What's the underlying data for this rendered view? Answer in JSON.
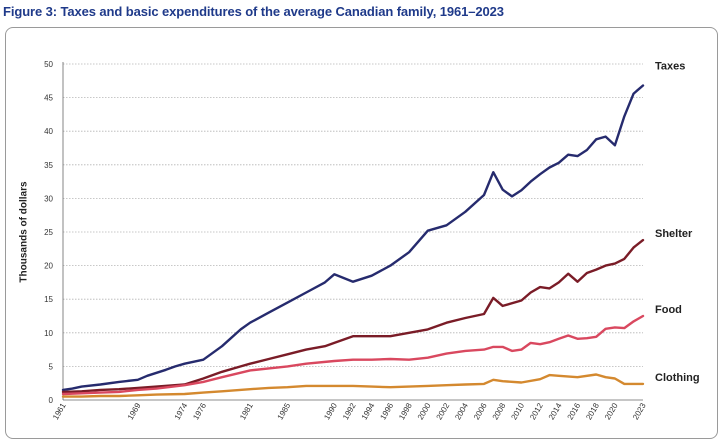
{
  "figure": {
    "title": "Figure 3: Taxes and basic expenditures of the average Canadian family, 1961–2023"
  },
  "chart_data": {
    "type": "line",
    "title": "Figure 3: Taxes and basic expenditures of the average Canadian family, 1961–2023",
    "xlabel": "",
    "ylabel": "Thousands of dollars",
    "ylim": [
      0,
      50
    ],
    "yticks": [
      0,
      5,
      10,
      15,
      20,
      25,
      30,
      35,
      40,
      45,
      50
    ],
    "xticks": [
      "1961",
      "1969",
      "1974",
      "1976",
      "1981",
      "1985",
      "1990",
      "1992",
      "1994",
      "1996",
      "1998",
      "2000",
      "2002",
      "2004",
      "2006",
      "2008",
      "2010",
      "2012",
      "2014",
      "2016",
      "2018",
      "2020",
      "2023"
    ],
    "grid": "horizontal dotted",
    "legend": "direct labels at right",
    "series": [
      {
        "name": "Taxes",
        "color": "#262b6e",
        "points": [
          [
            1961,
            1.5
          ],
          [
            1962,
            1.7
          ],
          [
            1963,
            2.0
          ],
          [
            1965,
            2.3
          ],
          [
            1967,
            2.7
          ],
          [
            1969,
            3.0
          ],
          [
            1970,
            3.6
          ],
          [
            1972,
            4.5
          ],
          [
            1973,
            5.0
          ],
          [
            1974,
            5.4
          ],
          [
            1976,
            6.0
          ],
          [
            1978,
            8.0
          ],
          [
            1980,
            10.5
          ],
          [
            1981,
            11.5
          ],
          [
            1983,
            13.0
          ],
          [
            1985,
            14.5
          ],
          [
            1987,
            16.0
          ],
          [
            1989,
            17.5
          ],
          [
            1990,
            18.7
          ],
          [
            1992,
            17.6
          ],
          [
            1994,
            18.5
          ],
          [
            1996,
            20.0
          ],
          [
            1998,
            22.0
          ],
          [
            2000,
            25.2
          ],
          [
            2002,
            26.0
          ],
          [
            2004,
            28.0
          ],
          [
            2006,
            30.5
          ],
          [
            2007,
            33.9
          ],
          [
            2008,
            31.3
          ],
          [
            2009,
            30.3
          ],
          [
            2010,
            31.2
          ],
          [
            2011,
            32.5
          ],
          [
            2012,
            33.6
          ],
          [
            2013,
            34.6
          ],
          [
            2014,
            35.3
          ],
          [
            2015,
            36.5
          ],
          [
            2016,
            36.3
          ],
          [
            2017,
            37.2
          ],
          [
            2018,
            38.8
          ],
          [
            2019,
            39.2
          ],
          [
            2020,
            37.9
          ],
          [
            2021,
            42.2
          ],
          [
            2022,
            45.6
          ],
          [
            2023,
            46.8
          ]
        ]
      },
      {
        "name": "Shelter",
        "color": "#7a1c27",
        "points": [
          [
            1961,
            1.2
          ],
          [
            1963,
            1.3
          ],
          [
            1965,
            1.5
          ],
          [
            1967,
            1.6
          ],
          [
            1969,
            1.8
          ],
          [
            1971,
            2.0
          ],
          [
            1974,
            2.3
          ],
          [
            1976,
            3.2
          ],
          [
            1978,
            4.2
          ],
          [
            1980,
            5.0
          ],
          [
            1981,
            5.4
          ],
          [
            1983,
            6.1
          ],
          [
            1985,
            6.8
          ],
          [
            1987,
            7.5
          ],
          [
            1989,
            8.0
          ],
          [
            1990,
            8.5
          ],
          [
            1992,
            9.5
          ],
          [
            1994,
            9.5
          ],
          [
            1996,
            9.5
          ],
          [
            1998,
            10.0
          ],
          [
            2000,
            10.5
          ],
          [
            2002,
            11.5
          ],
          [
            2004,
            12.2
          ],
          [
            2006,
            12.8
          ],
          [
            2007,
            15.2
          ],
          [
            2008,
            14.0
          ],
          [
            2010,
            14.8
          ],
          [
            2011,
            16.0
          ],
          [
            2012,
            16.8
          ],
          [
            2013,
            16.6
          ],
          [
            2014,
            17.5
          ],
          [
            2015,
            18.8
          ],
          [
            2016,
            17.6
          ],
          [
            2017,
            18.9
          ],
          [
            2018,
            19.4
          ],
          [
            2019,
            20.0
          ],
          [
            2020,
            20.3
          ],
          [
            2021,
            21.0
          ],
          [
            2022,
            22.7
          ],
          [
            2023,
            23.8
          ]
        ]
      },
      {
        "name": "Food",
        "color": "#d9485f",
        "points": [
          [
            1961,
            0.9
          ],
          [
            1963,
            1.0
          ],
          [
            1965,
            1.1
          ],
          [
            1967,
            1.2
          ],
          [
            1969,
            1.5
          ],
          [
            1971,
            1.7
          ],
          [
            1974,
            2.2
          ],
          [
            1976,
            2.7
          ],
          [
            1978,
            3.4
          ],
          [
            1981,
            4.4
          ],
          [
            1983,
            4.7
          ],
          [
            1985,
            5.0
          ],
          [
            1987,
            5.4
          ],
          [
            1990,
            5.8
          ],
          [
            1992,
            6.0
          ],
          [
            1994,
            6.0
          ],
          [
            1996,
            6.1
          ],
          [
            1998,
            6.0
          ],
          [
            2000,
            6.3
          ],
          [
            2002,
            6.9
          ],
          [
            2004,
            7.3
          ],
          [
            2006,
            7.5
          ],
          [
            2007,
            7.9
          ],
          [
            2008,
            7.9
          ],
          [
            2009,
            7.3
          ],
          [
            2010,
            7.5
          ],
          [
            2011,
            8.5
          ],
          [
            2012,
            8.3
          ],
          [
            2013,
            8.6
          ],
          [
            2014,
            9.1
          ],
          [
            2015,
            9.6
          ],
          [
            2016,
            9.1
          ],
          [
            2017,
            9.2
          ],
          [
            2018,
            9.4
          ],
          [
            2019,
            10.6
          ],
          [
            2020,
            10.8
          ],
          [
            2021,
            10.7
          ],
          [
            2022,
            11.7
          ],
          [
            2023,
            12.5
          ]
        ]
      },
      {
        "name": "Clothing",
        "color": "#d4892f",
        "points": [
          [
            1961,
            0.5
          ],
          [
            1963,
            0.5
          ],
          [
            1965,
            0.6
          ],
          [
            1967,
            0.6
          ],
          [
            1969,
            0.7
          ],
          [
            1971,
            0.8
          ],
          [
            1974,
            0.9
          ],
          [
            1976,
            1.1
          ],
          [
            1978,
            1.3
          ],
          [
            1981,
            1.6
          ],
          [
            1983,
            1.8
          ],
          [
            1985,
            1.9
          ],
          [
            1987,
            2.1
          ],
          [
            1990,
            2.1
          ],
          [
            1992,
            2.1
          ],
          [
            1994,
            2.0
          ],
          [
            1996,
            1.9
          ],
          [
            1998,
            2.0
          ],
          [
            2000,
            2.1
          ],
          [
            2002,
            2.2
          ],
          [
            2004,
            2.3
          ],
          [
            2006,
            2.4
          ],
          [
            2007,
            3.0
          ],
          [
            2008,
            2.8
          ],
          [
            2010,
            2.6
          ],
          [
            2012,
            3.1
          ],
          [
            2013,
            3.7
          ],
          [
            2014,
            3.6
          ],
          [
            2016,
            3.4
          ],
          [
            2018,
            3.8
          ],
          [
            2019,
            3.4
          ],
          [
            2020,
            3.2
          ],
          [
            2021,
            2.4
          ],
          [
            2022,
            2.4
          ],
          [
            2023,
            2.4
          ]
        ]
      }
    ]
  }
}
